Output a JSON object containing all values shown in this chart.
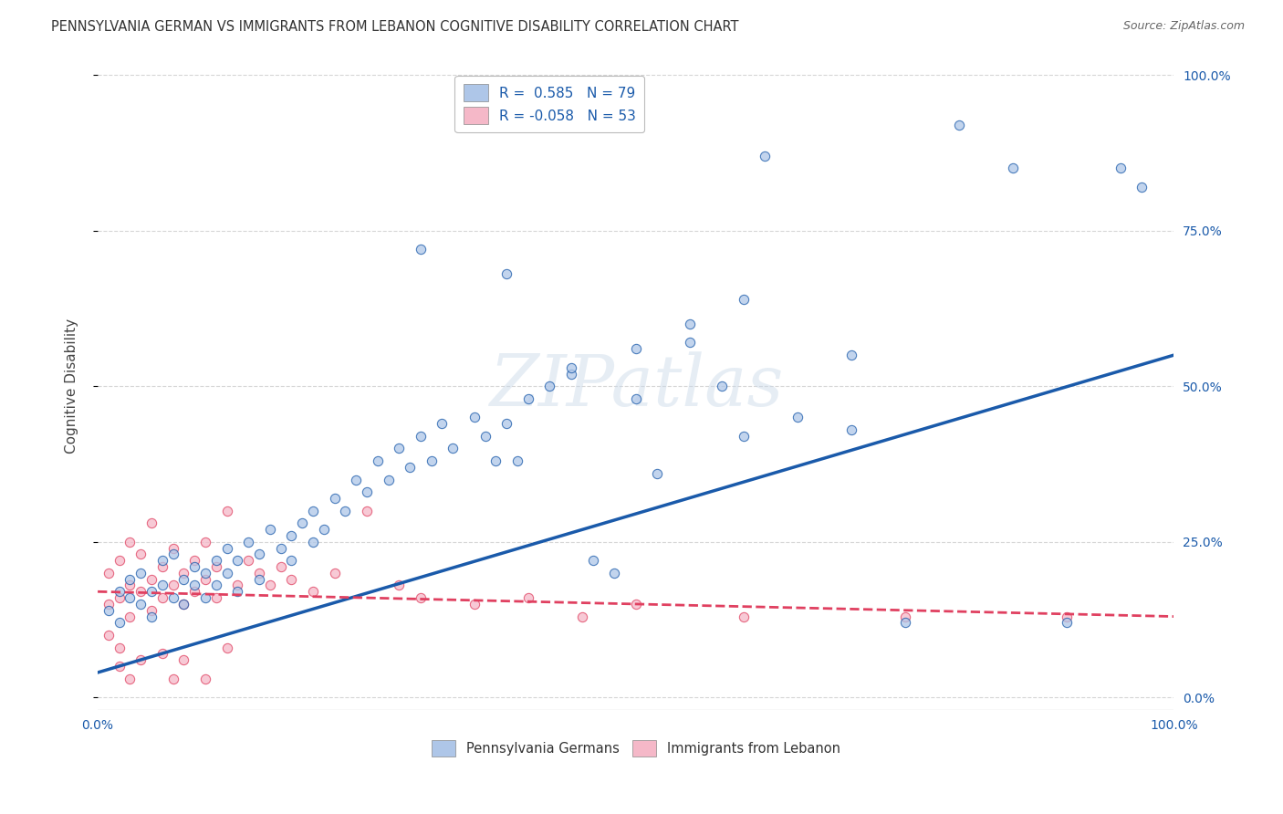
{
  "title": "PENNSYLVANIA GERMAN VS IMMIGRANTS FROM LEBANON COGNITIVE DISABILITY CORRELATION CHART",
  "source": "Source: ZipAtlas.com",
  "ylabel": "Cognitive Disability",
  "xlim": [
    0,
    1.0
  ],
  "ylim": [
    -0.02,
    1.02
  ],
  "blue_R": 0.585,
  "blue_N": 79,
  "pink_R": -0.058,
  "pink_N": 53,
  "blue_color": "#aec6e8",
  "pink_color": "#f5b8c8",
  "blue_line_color": "#1a5aaa",
  "pink_line_color": "#e04060",
  "grid_color": "#cccccc",
  "background_color": "#ffffff",
  "watermark": "ZIPatlas",
  "blue_trend_x": [
    0.0,
    1.0
  ],
  "blue_trend_y": [
    0.04,
    0.55
  ],
  "pink_trend_x": [
    0.0,
    1.0
  ],
  "pink_trend_y": [
    0.17,
    0.13
  ],
  "blue_scatter_x": [
    0.01,
    0.02,
    0.02,
    0.03,
    0.03,
    0.04,
    0.04,
    0.05,
    0.05,
    0.06,
    0.06,
    0.07,
    0.07,
    0.08,
    0.08,
    0.09,
    0.09,
    0.1,
    0.1,
    0.11,
    0.11,
    0.12,
    0.12,
    0.13,
    0.13,
    0.14,
    0.15,
    0.15,
    0.16,
    0.17,
    0.18,
    0.18,
    0.19,
    0.2,
    0.2,
    0.21,
    0.22,
    0.23,
    0.24,
    0.25,
    0.26,
    0.27,
    0.28,
    0.29,
    0.3,
    0.31,
    0.32,
    0.33,
    0.35,
    0.36,
    0.37,
    0.38,
    0.39,
    0.4,
    0.42,
    0.44,
    0.46,
    0.48,
    0.5,
    0.52,
    0.55,
    0.58,
    0.6,
    0.62,
    0.65,
    0.7,
    0.75,
    0.8,
    0.85,
    0.9,
    0.95,
    0.97,
    0.3,
    0.38,
    0.44,
    0.5,
    0.55,
    0.6,
    0.7
  ],
  "blue_scatter_y": [
    0.14,
    0.17,
    0.12,
    0.16,
    0.19,
    0.15,
    0.2,
    0.17,
    0.13,
    0.18,
    0.22,
    0.16,
    0.23,
    0.19,
    0.15,
    0.21,
    0.18,
    0.2,
    0.16,
    0.22,
    0.18,
    0.24,
    0.2,
    0.22,
    0.17,
    0.25,
    0.23,
    0.19,
    0.27,
    0.24,
    0.26,
    0.22,
    0.28,
    0.25,
    0.3,
    0.27,
    0.32,
    0.3,
    0.35,
    0.33,
    0.38,
    0.35,
    0.4,
    0.37,
    0.42,
    0.38,
    0.44,
    0.4,
    0.45,
    0.42,
    0.38,
    0.44,
    0.38,
    0.48,
    0.5,
    0.52,
    0.22,
    0.2,
    0.48,
    0.36,
    0.57,
    0.5,
    0.42,
    0.87,
    0.45,
    0.43,
    0.12,
    0.92,
    0.85,
    0.12,
    0.85,
    0.82,
    0.72,
    0.68,
    0.53,
    0.56,
    0.6,
    0.64,
    0.55
  ],
  "pink_scatter_x": [
    0.01,
    0.01,
    0.01,
    0.02,
    0.02,
    0.02,
    0.03,
    0.03,
    0.03,
    0.04,
    0.04,
    0.05,
    0.05,
    0.05,
    0.06,
    0.06,
    0.07,
    0.07,
    0.08,
    0.08,
    0.09,
    0.09,
    0.1,
    0.1,
    0.11,
    0.11,
    0.12,
    0.13,
    0.14,
    0.15,
    0.16,
    0.17,
    0.18,
    0.2,
    0.22,
    0.25,
    0.28,
    0.3,
    0.35,
    0.4,
    0.45,
    0.5,
    0.6,
    0.75,
    0.9,
    0.02,
    0.04,
    0.06,
    0.08,
    0.12,
    0.03,
    0.07,
    0.1
  ],
  "pink_scatter_y": [
    0.15,
    0.2,
    0.1,
    0.16,
    0.22,
    0.08,
    0.18,
    0.25,
    0.13,
    0.17,
    0.23,
    0.19,
    0.28,
    0.14,
    0.21,
    0.16,
    0.18,
    0.24,
    0.2,
    0.15,
    0.22,
    0.17,
    0.19,
    0.25,
    0.21,
    0.16,
    0.3,
    0.18,
    0.22,
    0.2,
    0.18,
    0.21,
    0.19,
    0.17,
    0.2,
    0.3,
    0.18,
    0.16,
    0.15,
    0.16,
    0.13,
    0.15,
    0.13,
    0.13,
    0.13,
    0.05,
    0.06,
    0.07,
    0.06,
    0.08,
    0.03,
    0.03,
    0.03
  ]
}
